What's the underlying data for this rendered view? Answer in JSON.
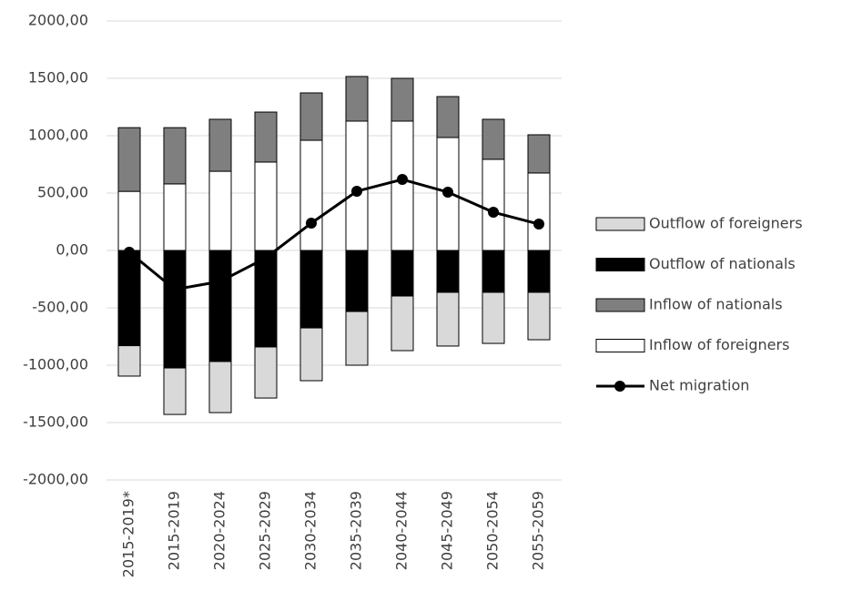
{
  "chart_data": {
    "type": "stacked-bar-line",
    "categories": [
      "2015-2019*",
      "2015-2019",
      "2020-2024",
      "2025-2029",
      "2030-2034",
      "2035-2039",
      "2040-2044",
      "2045-2049",
      "2050-2054",
      "2055-2059"
    ],
    "series": [
      {
        "name": "Inflow of foreigners",
        "color": "#ffffff",
        "values": [
          515,
          580,
          690,
          770,
          960,
          1127,
          1127,
          984,
          794,
          675
        ]
      },
      {
        "name": "Inflow of nationals",
        "color": "#7f7f7f",
        "values": [
          555,
          490,
          453,
          436,
          413,
          389,
          373,
          357,
          349,
          333
        ]
      },
      {
        "name": "Outflow of nationals",
        "color": "#000000",
        "values": [
          -830,
          -1024,
          -968,
          -841,
          -675,
          -532,
          -397,
          -365,
          -365,
          -365
        ]
      },
      {
        "name": "Outflow of foreigners",
        "color": "#d9d9d9",
        "values": [
          -265,
          -405,
          -445,
          -445,
          -460,
          -468,
          -476,
          -468,
          -445,
          -413
        ]
      },
      {
        "name": "Net migration",
        "color": "#000000",
        "line": true,
        "values": [
          -15,
          -340,
          -270,
          -65,
          238,
          516,
          619,
          508,
          333,
          230
        ]
      }
    ],
    "ylim": [
      -2000,
      2000
    ],
    "yticks": [
      {
        "value": -2000,
        "label": "-2000,00"
      },
      {
        "value": -1500,
        "label": "-1500,00"
      },
      {
        "value": -1000,
        "label": "-1000,00"
      },
      {
        "value": -500,
        "label": "-500,00"
      },
      {
        "value": 0,
        "label": "0,00"
      },
      {
        "value": 500,
        "label": "500,00"
      },
      {
        "value": 1000,
        "label": "1000,00"
      },
      {
        "value": 1500,
        "label": "1500,00"
      },
      {
        "value": 2000,
        "label": "2000,00"
      }
    ],
    "grid": true,
    "legend": "right"
  }
}
